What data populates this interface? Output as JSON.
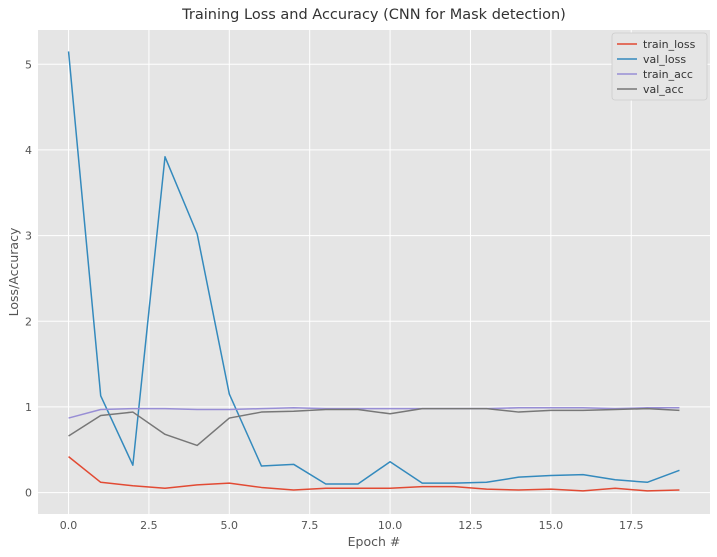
{
  "chart_data": {
    "type": "line",
    "title": "Training Loss and Accuracy (CNN for Mask detection)",
    "xlabel": "Epoch #",
    "ylabel": "Loss/Accuracy",
    "xlim": [
      -0.95,
      19.95
    ],
    "ylim": [
      -0.25,
      5.4
    ],
    "xticks": [
      0,
      2.5,
      5,
      7.5,
      10,
      12.5,
      15,
      17.5
    ],
    "xtick_labels": [
      "0.0",
      "2.5",
      "5.0",
      "7.5",
      "10.0",
      "12.5",
      "15.0",
      "17.5"
    ],
    "yticks": [
      0,
      1,
      2,
      3,
      4,
      5
    ],
    "ytick_labels": [
      "0",
      "1",
      "2",
      "3",
      "4",
      "5"
    ],
    "grid": true,
    "legend_position": "top-right",
    "x": [
      0,
      1,
      2,
      3,
      4,
      5,
      6,
      7,
      8,
      9,
      10,
      11,
      12,
      13,
      14,
      15,
      16,
      17,
      18,
      19
    ],
    "series": [
      {
        "name": "train_loss",
        "color": "#E24A33",
        "values": [
          0.42,
          0.12,
          0.08,
          0.05,
          0.09,
          0.11,
          0.06,
          0.03,
          0.05,
          0.05,
          0.05,
          0.07,
          0.07,
          0.04,
          0.03,
          0.04,
          0.02,
          0.05,
          0.02,
          0.03
        ]
      },
      {
        "name": "val_loss",
        "color": "#348ABD",
        "values": [
          5.15,
          1.13,
          0.32,
          3.92,
          3.02,
          1.15,
          0.31,
          0.33,
          0.1,
          0.1,
          0.36,
          0.11,
          0.11,
          0.12,
          0.18,
          0.2,
          0.21,
          0.15,
          0.12,
          0.26
        ]
      },
      {
        "name": "train_acc",
        "color": "#988ED5",
        "values": [
          0.87,
          0.97,
          0.98,
          0.98,
          0.97,
          0.97,
          0.98,
          0.99,
          0.98,
          0.98,
          0.98,
          0.98,
          0.98,
          0.98,
          0.99,
          0.99,
          0.99,
          0.98,
          0.99,
          0.99
        ]
      },
      {
        "name": "val_acc",
        "color": "#777777",
        "values": [
          0.66,
          0.9,
          0.94,
          0.68,
          0.55,
          0.87,
          0.94,
          0.95,
          0.97,
          0.97,
          0.92,
          0.98,
          0.98,
          0.98,
          0.94,
          0.96,
          0.96,
          0.97,
          0.98,
          0.96
        ]
      }
    ],
    "colors": {
      "plot_background": "#E5E5E5",
      "grid": "#FFFFFF",
      "text": "#555555",
      "legend_background": "#E5E5E5"
    }
  }
}
